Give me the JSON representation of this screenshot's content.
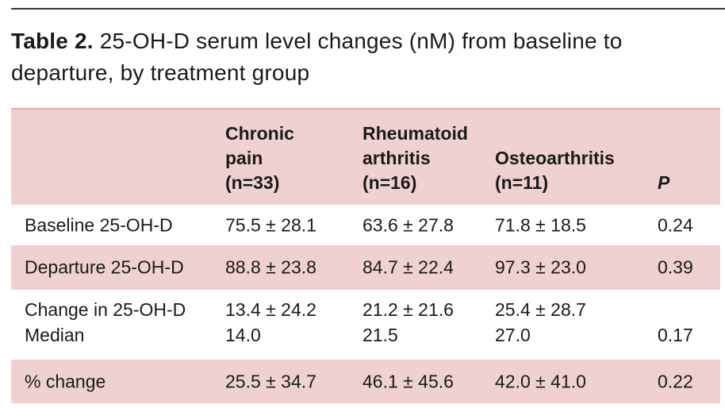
{
  "caption": {
    "label": "Table 2.",
    "text": " 25-OH-D serum level changes (nM) from baseline to departure, by treatment group"
  },
  "headers": {
    "col1": [
      "Chronic",
      "pain",
      "(n=33)"
    ],
    "col2": [
      "Rheumatoid",
      "arthritis",
      "(n=16)"
    ],
    "col3": [
      "Osteoarthritis",
      "(n=11)"
    ],
    "col4": "P"
  },
  "rows": {
    "baseline": {
      "label": "Baseline 25-OH-D",
      "v1": "75.5 ± 28.1",
      "v2": "63.6 ± 27.8",
      "v3": "71.8 ± 18.5",
      "p": "0.24"
    },
    "departure": {
      "label": "Departure 25-OH-D",
      "v1": "88.8 ± 23.8",
      "v2": "84.7 ± 22.4",
      "v3": "97.3 ± 23.0",
      "p": "0.39"
    },
    "change": {
      "label": "Change in 25-OH-D",
      "v1": "13.4 ± 24.2",
      "v2": "21.2 ± 21.6",
      "v3": "25.4 ± 28.7"
    },
    "median": {
      "label": "Median",
      "v1": "14.0",
      "v2": "21.5",
      "v3": "27.0",
      "p": "0.17"
    },
    "pct": {
      "label": "% change",
      "v1": "25.5 ± 34.7",
      "v2": "46.1 ± 45.6",
      "v3": "42.0 ± 41.0",
      "p": "0.22"
    }
  },
  "colors": {
    "header_bg": "#efd1d2",
    "rule": "#e7a9ad"
  }
}
